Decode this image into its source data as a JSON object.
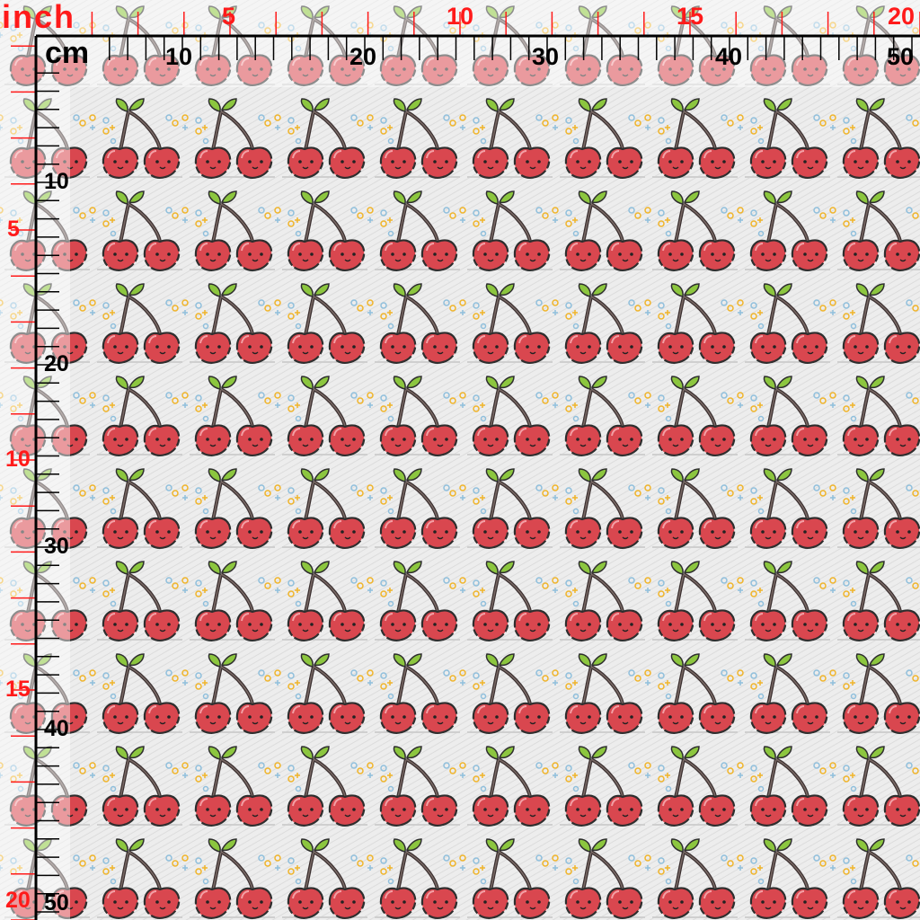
{
  "ruler": {
    "inch_unit_label": "inch",
    "cm_unit_label": "cm",
    "top_inch_labels": [
      "5",
      "10",
      "15",
      "20"
    ],
    "top_cm_labels": [
      "10",
      "20",
      "30",
      "40",
      "50"
    ],
    "left_inch_labels": [
      "5",
      "10",
      "15",
      "20"
    ],
    "left_cm_labels": [
      "10",
      "20",
      "30",
      "40",
      "50"
    ],
    "inch_color": "#ff1a1a",
    "cm_color": "#000000"
  },
  "fabric": {
    "motif": "cherry-pair-with-faces",
    "cherry_color": "#d9474f",
    "leaf_color": "#8cc63f",
    "stem_color": "#3b3030",
    "dot_colors": [
      "#f0b429",
      "#8fbfdc"
    ],
    "background_color": "#eeeeee"
  }
}
